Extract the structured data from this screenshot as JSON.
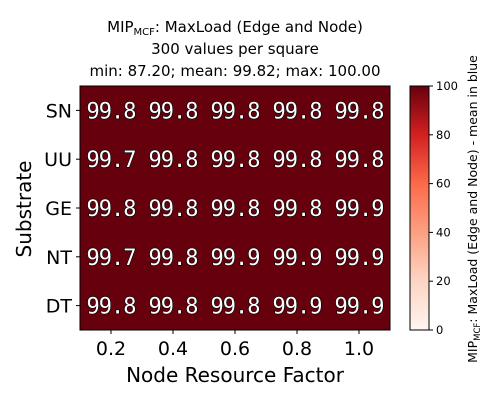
{
  "chart_data": {
    "type": "heatmap",
    "title_main": "MIP",
    "title_sub": "MCF",
    "title_rest": ": MaxLoad (Edge and Node)",
    "title_line2": "300 values per square",
    "title_line3": "min: 87.20; mean: 99.82; max: 100.00",
    "xlabel": "Node Resource Factor",
    "ylabel": "Substrate",
    "x_ticks": [
      "0.2",
      "0.4",
      "0.6",
      "0.8",
      "1.0"
    ],
    "y_categories": [
      "SN",
      "UU",
      "GE",
      "NT",
      "DT"
    ],
    "cell_labels": [
      [
        "99.8",
        "99.8",
        "99.8",
        "99.8",
        "99.8"
      ],
      [
        "99.7",
        "99.8",
        "99.8",
        "99.8",
        "99.8"
      ],
      [
        "99.8",
        "99.8",
        "99.8",
        "99.8",
        "99.9"
      ],
      [
        "99.7",
        "99.8",
        "99.9",
        "99.9",
        "99.9"
      ],
      [
        "99.8",
        "99.8",
        "99.8",
        "99.9",
        "99.9"
      ]
    ],
    "colorbar": {
      "ticks": [
        "0",
        "20",
        "40",
        "60",
        "80",
        "100"
      ],
      "tick_values": [
        0,
        20,
        40,
        60,
        80,
        100
      ],
      "range": [
        0,
        100
      ],
      "label_main": "MIP",
      "label_sub": "MCF",
      "label_rest": ": MaxLoad (Edge and Node) - mean in blue"
    },
    "colors": {
      "cell": "#67000d",
      "colormap_low": "#fff5f0",
      "colormap_mid": "#fb6a4a",
      "colormap_high": "#67000d"
    }
  }
}
